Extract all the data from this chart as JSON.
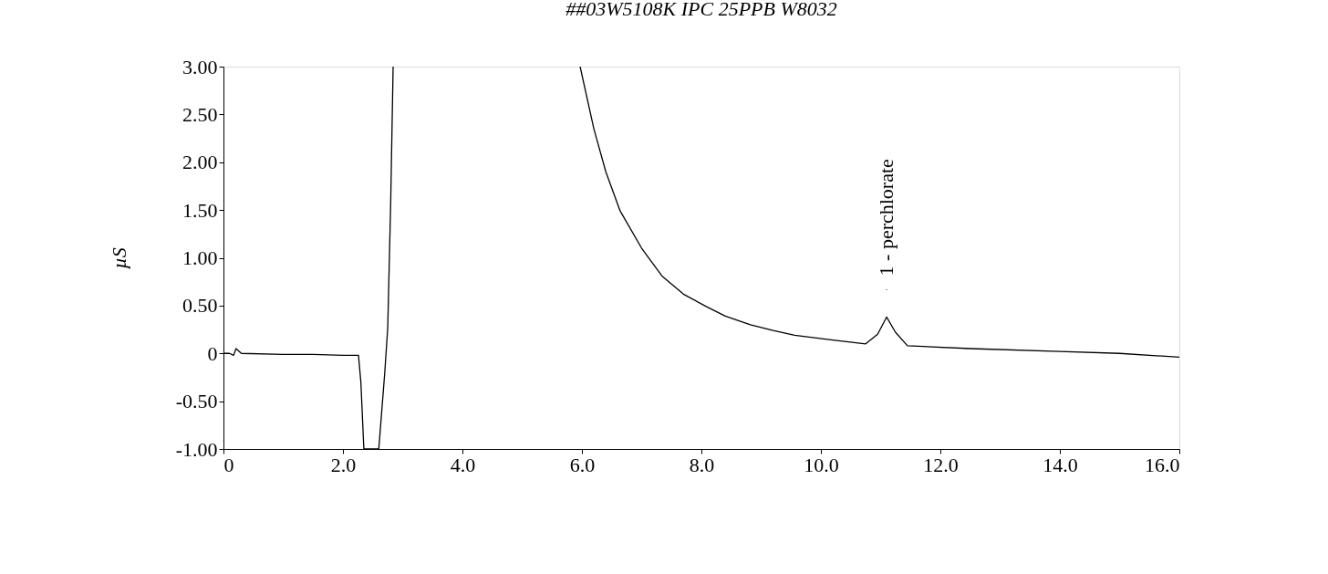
{
  "chart_data": {
    "type": "line",
    "title": "##03W5108K  IPC 25PPB W8032",
    "ylabel": "µS",
    "xlim": [
      0,
      16
    ],
    "ylim": [
      -1,
      3
    ],
    "xticks": [
      0,
      {
        "value": 2,
        "label": "2.0"
      },
      {
        "value": 4,
        "label": "4.0"
      },
      {
        "value": 6,
        "label": "6.0"
      },
      {
        "value": 8,
        "label": "8.0"
      },
      {
        "value": 10,
        "label": "10.0"
      },
      {
        "value": 12,
        "label": "12.0"
      },
      {
        "value": 14,
        "label": "14.0"
      },
      {
        "value": 16,
        "label": "16.0"
      }
    ],
    "yticks": [
      {
        "value": -1,
        "label": "-1.00"
      },
      {
        "value": -0.5,
        "label": "-0.50"
      },
      0,
      {
        "value": 0.5,
        "label": "0.50"
      },
      {
        "value": 1,
        "label": "1.00"
      },
      {
        "value": 1.5,
        "label": "1.50"
      },
      {
        "value": 2,
        "label": "2.00"
      },
      {
        "value": 2.5,
        "label": "2.50"
      },
      {
        "value": 3,
        "label": "3.00"
      }
    ],
    "series": [
      {
        "color": "#000000",
        "x": [
          0,
          0.1,
          0.17,
          0.21,
          0.3,
          1.0,
          1.5,
          2.0,
          2.26,
          2.3,
          2.35,
          2.6,
          2.7,
          2.75,
          2.8,
          2.84,
          4.0,
          5.97,
          6.2,
          6.4,
          6.64,
          7.0,
          7.34,
          7.7,
          8.08,
          8.4,
          8.82,
          9.2,
          9.56,
          10.2,
          10.75,
          10.95,
          11.1,
          11.25,
          11.45,
          12.5,
          14.0,
          15.0,
          16.0
        ],
        "values": [
          0,
          0,
          -0.02,
          0.05,
          0.0,
          -0.01,
          -0.01,
          -0.02,
          -0.02,
          -0.3,
          -1,
          -1,
          -0.2,
          0.27,
          1.6,
          3,
          null,
          3,
          2.35,
          1.9,
          1.49,
          1.1,
          0.81,
          0.62,
          0.49,
          0.39,
          0.3,
          0.24,
          0.19,
          0.14,
          0.1,
          0.2,
          0.38,
          0.22,
          0.08,
          0.05,
          0.02,
          0.0,
          -0.04
        ]
      }
    ],
    "annotations": [
      {
        "text": "1 - perchlorate",
        "x": 11.1,
        "y": 0.38
      }
    ]
  }
}
